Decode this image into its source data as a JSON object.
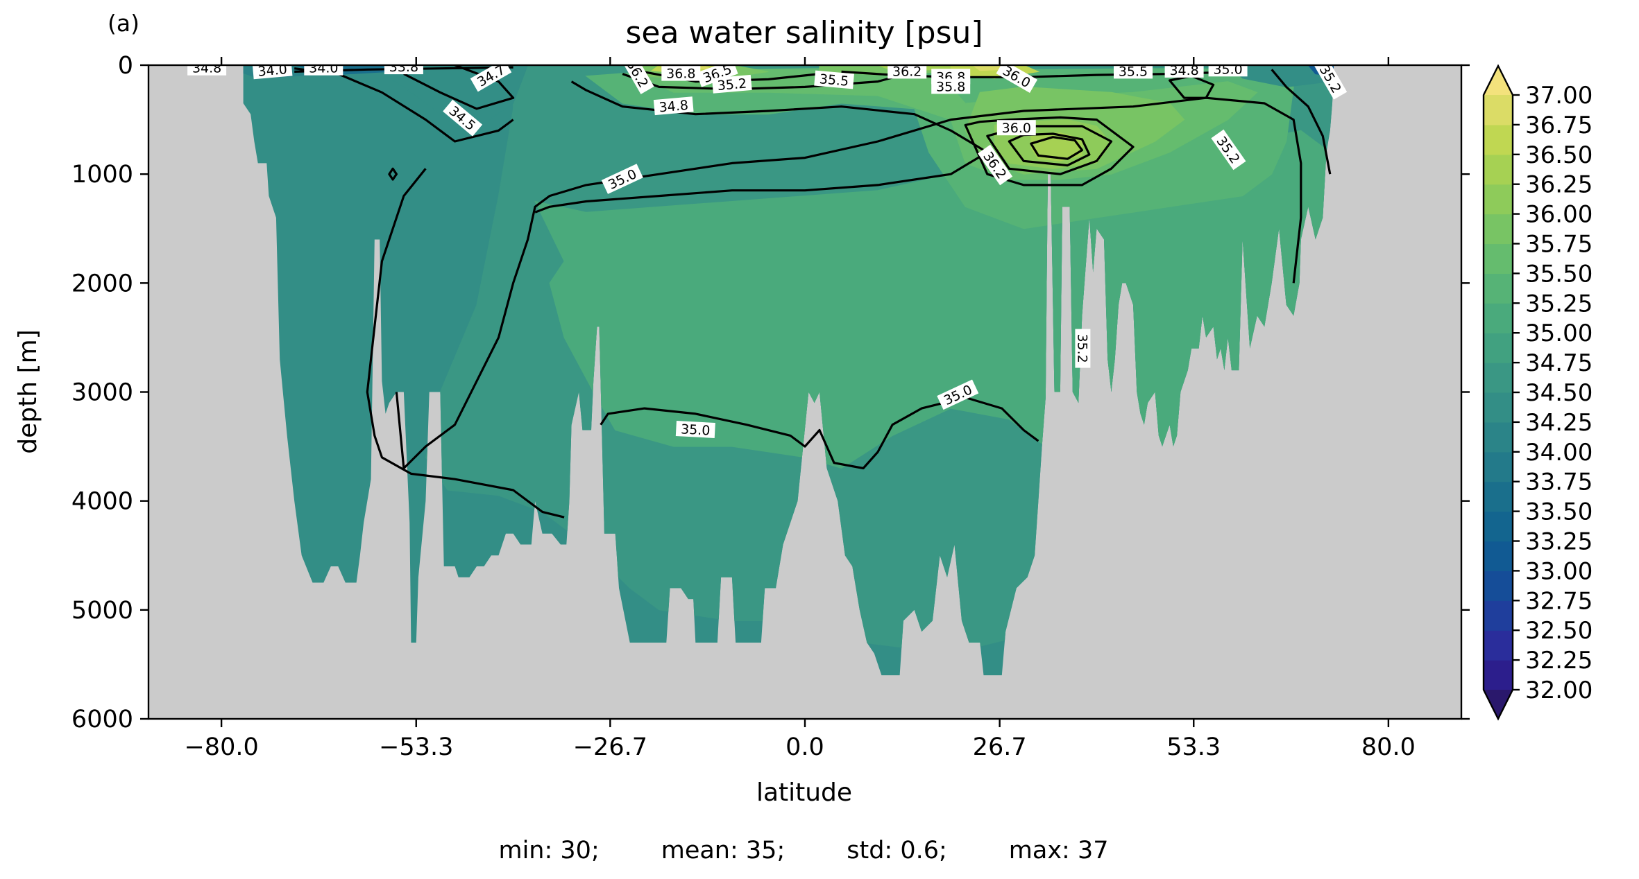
{
  "panel_label": "(a)",
  "chart_data": {
    "type": "contourf",
    "title": "sea water salinity [psu]",
    "xlabel": "latitude",
    "ylabel": "depth [m]",
    "xlim": [
      -90,
      90
    ],
    "ylim": [
      6000,
      0
    ],
    "x_ticks": [
      -80.0,
      -53.3,
      -26.7,
      0.0,
      26.7,
      53.3,
      80.0
    ],
    "x_tick_labels": [
      "−80.0",
      "−53.3",
      "−26.7",
      "0.0",
      "26.7",
      "53.3",
      "80.0"
    ],
    "y_ticks": [
      0,
      1000,
      2000,
      3000,
      4000,
      5000,
      6000
    ],
    "y_tick_labels": [
      "0",
      "1000",
      "2000",
      "3000",
      "4000",
      "5000",
      "6000"
    ],
    "colorbar": {
      "colormap": "haline",
      "range": [
        32.0,
        37.0
      ],
      "step": 0.25,
      "extend": "both",
      "tick_values": [
        32.0,
        32.25,
        32.5,
        32.75,
        33.0,
        33.25,
        33.5,
        33.75,
        34.0,
        34.25,
        34.5,
        34.75,
        35.0,
        35.25,
        35.5,
        35.75,
        36.0,
        36.25,
        36.5,
        36.75,
        37.0
      ],
      "tick_labels": [
        "32.00",
        "32.25",
        "32.50",
        "32.75",
        "33.00",
        "33.25",
        "33.50",
        "33.75",
        "34.00",
        "34.25",
        "34.50",
        "34.75",
        "35.00",
        "35.25",
        "35.50",
        "35.75",
        "36.00",
        "36.25",
        "36.50",
        "36.75",
        "37.00"
      ]
    },
    "land_color": "#cbcbcb",
    "contour_labels": [
      {
        "text": "34.0",
        "x": -73,
        "y": 50,
        "rot": -5
      },
      {
        "text": "34.0",
        "x": -66,
        "y": 30,
        "rot": 0
      },
      {
        "text": "34.8",
        "x": -82,
        "y": 30,
        "rot": 0
      },
      {
        "text": "33.8",
        "x": -55,
        "y": 20,
        "rot": 0
      },
      {
        "text": "34.7",
        "x": -43,
        "y": 100,
        "rot": -30
      },
      {
        "text": "34.5",
        "x": -47,
        "y": 490,
        "rot": 40
      },
      {
        "text": "36.2",
        "x": -23,
        "y": 80,
        "rot": 60
      },
      {
        "text": "36.8",
        "x": -17,
        "y": 80,
        "rot": 0
      },
      {
        "text": "36.5",
        "x": -12,
        "y": 80,
        "rot": -20
      },
      {
        "text": "35.2",
        "x": -10,
        "y": 180,
        "rot": -5
      },
      {
        "text": "34.8",
        "x": -18,
        "y": 380,
        "rot": -5
      },
      {
        "text": "35.0",
        "x": -25,
        "y": 1050,
        "rot": -25
      },
      {
        "text": "35.5",
        "x": 4,
        "y": 140,
        "rot": 5
      },
      {
        "text": "36.2",
        "x": 14,
        "y": 60,
        "rot": 0
      },
      {
        "text": "36.8",
        "x": 20,
        "y": 110,
        "rot": 0
      },
      {
        "text": "35.8",
        "x": 20,
        "y": 200,
        "rot": 0
      },
      {
        "text": "36.0",
        "x": 29,
        "y": 110,
        "rot": 30
      },
      {
        "text": "35.5",
        "x": 45,
        "y": 60,
        "rot": 0
      },
      {
        "text": "34.8",
        "x": 52,
        "y": 50,
        "rot": 0
      },
      {
        "text": "35.0",
        "x": 58,
        "y": 40,
        "rot": 0
      },
      {
        "text": "35.2",
        "x": 72,
        "y": 130,
        "rot": 60
      },
      {
        "text": "36.0",
        "x": 29,
        "y": 580,
        "rot": 0
      },
      {
        "text": "36.2",
        "x": 26,
        "y": 920,
        "rot": 55
      },
      {
        "text": "35.2",
        "x": 58,
        "y": 780,
        "rot": 55
      },
      {
        "text": "35.2",
        "x": 38,
        "y": 2600,
        "rot": 90
      },
      {
        "text": "35.0",
        "x": 21,
        "y": 3030,
        "rot": -25
      },
      {
        "text": "35.0",
        "x": -15,
        "y": 3350,
        "rot": 3
      }
    ],
    "annotation": "min: 30;        mean: 35;        std: 0.6;        max: 37"
  }
}
